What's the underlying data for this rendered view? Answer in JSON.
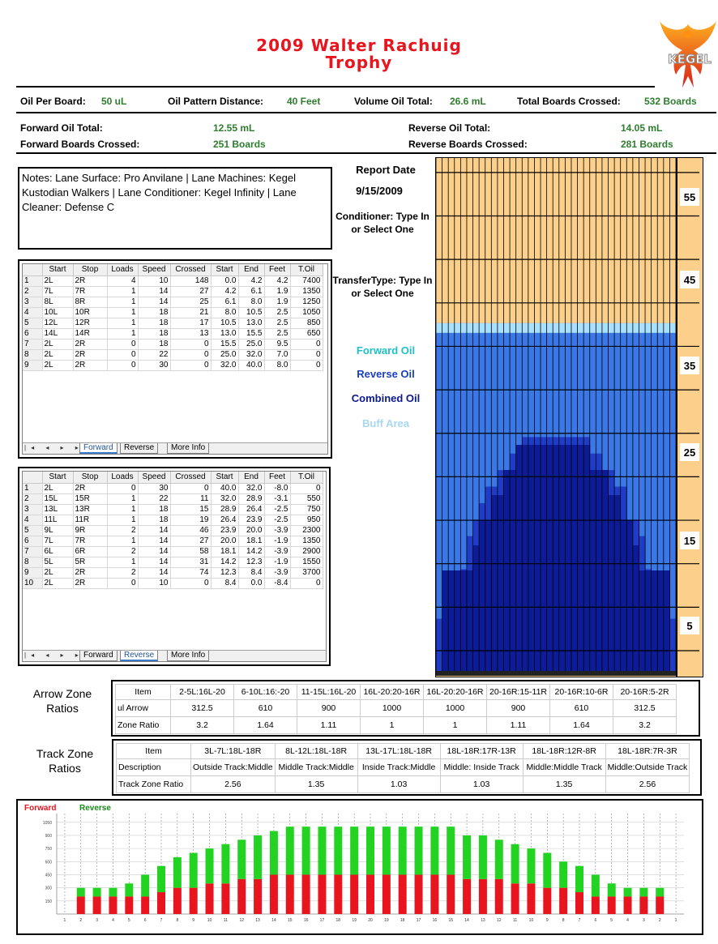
{
  "title": {
    "line1": "2009 Walter Rachuig",
    "line2": "Trophy"
  },
  "logo": {
    "text": "KEGEL",
    "icon": "phoenix-logo-icon"
  },
  "summary": {
    "oil_per_board_label": "Oil Per Board:",
    "oil_per_board": "50 uL",
    "pattern_distance_label": "Oil Pattern Distance:",
    "pattern_distance": "40 Feet",
    "volume_label": "Volume Oil Total:",
    "volume": "26.6 mL",
    "boards_label": "Total Boards Crossed:",
    "boards": "532 Boards",
    "fwd_oil_label": "Forward Oil Total:",
    "fwd_oil": "12.55 mL",
    "rev_oil_label": "Reverse Oil Total:",
    "rev_oil": "14.05 mL",
    "fwd_boards_label": "Forward Boards Crossed:",
    "fwd_boards": "251 Boards",
    "rev_boards_label": "Reverse Boards Crossed:",
    "rev_boards": "281 Boards"
  },
  "notes": "Notes: Lane Surface: Pro Anvilane | Lane Machines: Kegel Kustodian Walkers | Lane Conditioner: Kegel Infinity | Lane Cleaner: Defense C",
  "sidebar": {
    "report_date_label": "Report Date",
    "report_date": "9/15/2009",
    "conditioner": "Conditioner: Type In or Select One",
    "transfer": "TransferType: Type In or Select One",
    "legend": [
      {
        "label": "Forward Oil",
        "color": "#20c0c8"
      },
      {
        "label": "Reverse Oil",
        "color": "#1a3fc0"
      },
      {
        "label": "Combined Oil",
        "color": "#0a1a8c"
      },
      {
        "label": "Buff Area",
        "color": "#a8d8f0"
      }
    ]
  },
  "forward_table": {
    "headers": [
      "Start",
      "Stop",
      "Loads",
      "Speed",
      "Crossed",
      "Start",
      "End",
      "Feet",
      "T.Oil"
    ],
    "rows": [
      [
        "1",
        "2L",
        "2R",
        "4",
        "10",
        "148",
        "0.0",
        "4.2",
        "4.2",
        "7400"
      ],
      [
        "2",
        "7L",
        "7R",
        "1",
        "14",
        "27",
        "4.2",
        "6.1",
        "1.9",
        "1350"
      ],
      [
        "3",
        "8L",
        "8R",
        "1",
        "14",
        "25",
        "6.1",
        "8.0",
        "1.9",
        "1250"
      ],
      [
        "4",
        "10L",
        "10R",
        "1",
        "18",
        "21",
        "8.0",
        "10.5",
        "2.5",
        "1050"
      ],
      [
        "5",
        "12L",
        "12R",
        "1",
        "18",
        "17",
        "10.5",
        "13.0",
        "2.5",
        "850"
      ],
      [
        "6",
        "14L",
        "14R",
        "1",
        "18",
        "13",
        "13.0",
        "15.5",
        "2.5",
        "650"
      ],
      [
        "7",
        "2L",
        "2R",
        "0",
        "18",
        "0",
        "15.5",
        "25.0",
        "9.5",
        "0"
      ],
      [
        "8",
        "2L",
        "2R",
        "0",
        "22",
        "0",
        "25.0",
        "32.0",
        "7.0",
        "0"
      ],
      [
        "9",
        "2L",
        "2R",
        "0",
        "30",
        "0",
        "32.0",
        "40.0",
        "8.0",
        "0"
      ]
    ],
    "tabs": [
      "Forward",
      "Reverse",
      "More Info"
    ],
    "active_tab": 0,
    "nav": "|◂ ◂ ▸ ▸|"
  },
  "reverse_table": {
    "headers": [
      "Start",
      "Stop",
      "Loads",
      "Speed",
      "Crossed",
      "Start",
      "End",
      "Feet",
      "T.Oil"
    ],
    "rows": [
      [
        "1",
        "2L",
        "2R",
        "0",
        "30",
        "0",
        "40.0",
        "32.0",
        "-8.0",
        "0"
      ],
      [
        "2",
        "15L",
        "15R",
        "1",
        "22",
        "11",
        "32.0",
        "28.9",
        "-3.1",
        "550"
      ],
      [
        "3",
        "13L",
        "13R",
        "1",
        "18",
        "15",
        "28.9",
        "26.4",
        "-2.5",
        "750"
      ],
      [
        "4",
        "11L",
        "11R",
        "1",
        "18",
        "19",
        "26.4",
        "23.9",
        "-2.5",
        "950"
      ],
      [
        "5",
        "9L",
        "9R",
        "2",
        "14",
        "46",
        "23.9",
        "20.0",
        "-3.9",
        "2300"
      ],
      [
        "6",
        "7L",
        "7R",
        "1",
        "14",
        "27",
        "20.0",
        "18.1",
        "-1.9",
        "1350"
      ],
      [
        "7",
        "6L",
        "6R",
        "2",
        "14",
        "58",
        "18.1",
        "14.2",
        "-3.9",
        "2900"
      ],
      [
        "8",
        "5L",
        "5R",
        "1",
        "14",
        "31",
        "14.2",
        "12.3",
        "-1.9",
        "1550"
      ],
      [
        "9",
        "2L",
        "2R",
        "2",
        "14",
        "74",
        "12.3",
        "8.4",
        "-3.9",
        "3700"
      ],
      [
        "10",
        "2L",
        "2R",
        "0",
        "10",
        "0",
        "8.4",
        "0.0",
        "-8.4",
        "0"
      ]
    ],
    "tabs": [
      "Forward",
      "Reverse",
      "More Info"
    ],
    "active_tab": 1,
    "nav": "|◂ ◂ ▸ ▸|"
  },
  "arrow_zone": {
    "label_line1": "Arrow Zone",
    "label_line2": "Ratios",
    "headers": [
      "Item",
      "2-5L:16L-20",
      "6-10L:16:-20",
      "11-15L:16L-20",
      "16L-20:20-16R",
      "16L-20:20-16R",
      "20-16R:15-11R",
      "20-16R:10-6R",
      "20-16R:5-2R"
    ],
    "rows": [
      [
        "ul Arrow",
        "312.5",
        "610",
        "900",
        "1000",
        "1000",
        "900",
        "610",
        "312.5"
      ],
      [
        "Zone Ratio",
        "3.2",
        "1.64",
        "1.11",
        "1",
        "1",
        "1.11",
        "1.64",
        "3.2"
      ]
    ]
  },
  "track_zone": {
    "label_line1": "Track Zone",
    "label_line2": "Ratios",
    "headers": [
      "Item",
      "3L-7L:18L-18R",
      "8L-12L:18L-18R",
      "13L-17L:18L-18R",
      "18L-18R:17R-13R",
      "18L-18R:12R-8R",
      "18L-18R:7R-3R"
    ],
    "rows": [
      [
        "Description",
        "Outside Track:Middle",
        "Middle Track:Middle",
        "Inside Track:Middle",
        "Middle: Inside Track",
        "Middle:Middle Track",
        "Middle:Outside Track"
      ],
      [
        "Track Zone Ratio",
        "2.56",
        "1.35",
        "1.03",
        "1.03",
        "1.35",
        "2.56"
      ]
    ]
  },
  "lane_graph": {
    "colors": {
      "buff": "#fcd08a",
      "forward": "#3a78e8",
      "reverse": "#1e3cc8",
      "combined": "#0c1c98",
      "light": "#a8e0ff"
    },
    "distance_labels": [
      "55",
      "45",
      "35",
      "25",
      "15",
      "5"
    ],
    "forward_length_ft": [
      40.0,
      4.2,
      6.1,
      8.0,
      10.5,
      13.0,
      15.5,
      15.5
    ]
  },
  "chart_data": {
    "type": "bar",
    "legend": [
      "Forward",
      "Reverse"
    ],
    "colors": {
      "Forward": "#e8141e",
      "Reverse": "#22d322"
    },
    "categories": [
      "1",
      "2",
      "3",
      "4",
      "5",
      "6",
      "7",
      "8",
      "9",
      "10",
      "11",
      "12",
      "13",
      "14",
      "15",
      "16",
      "17",
      "18",
      "19",
      "20",
      "19",
      "18",
      "17",
      "16",
      "15",
      "14",
      "13",
      "12",
      "11",
      "10",
      "9",
      "8",
      "7",
      "6",
      "5",
      "4",
      "3",
      "2",
      "1"
    ],
    "series": [
      {
        "name": "Forward",
        "values": [
          0,
          200,
          200,
          200,
          200,
          200,
          250,
          300,
          300,
          350,
          350,
          400,
          400,
          450,
          450,
          450,
          450,
          450,
          450,
          450,
          450,
          450,
          450,
          450,
          450,
          400,
          400,
          400,
          350,
          350,
          300,
          300,
          250,
          200,
          200,
          200,
          200,
          200,
          0
        ]
      },
      {
        "name": "Reverse",
        "values": [
          0,
          100,
          100,
          100,
          150,
          250,
          300,
          350,
          400,
          400,
          450,
          450,
          500,
          500,
          550,
          550,
          550,
          550,
          550,
          550,
          550,
          550,
          550,
          550,
          550,
          500,
          500,
          450,
          450,
          400,
          400,
          300,
          300,
          250,
          150,
          100,
          100,
          100,
          0
        ]
      }
    ],
    "yticks": [
      "150",
      "300",
      "450",
      "600",
      "750",
      "900",
      "1050"
    ],
    "ylim": [
      0,
      1150
    ]
  }
}
